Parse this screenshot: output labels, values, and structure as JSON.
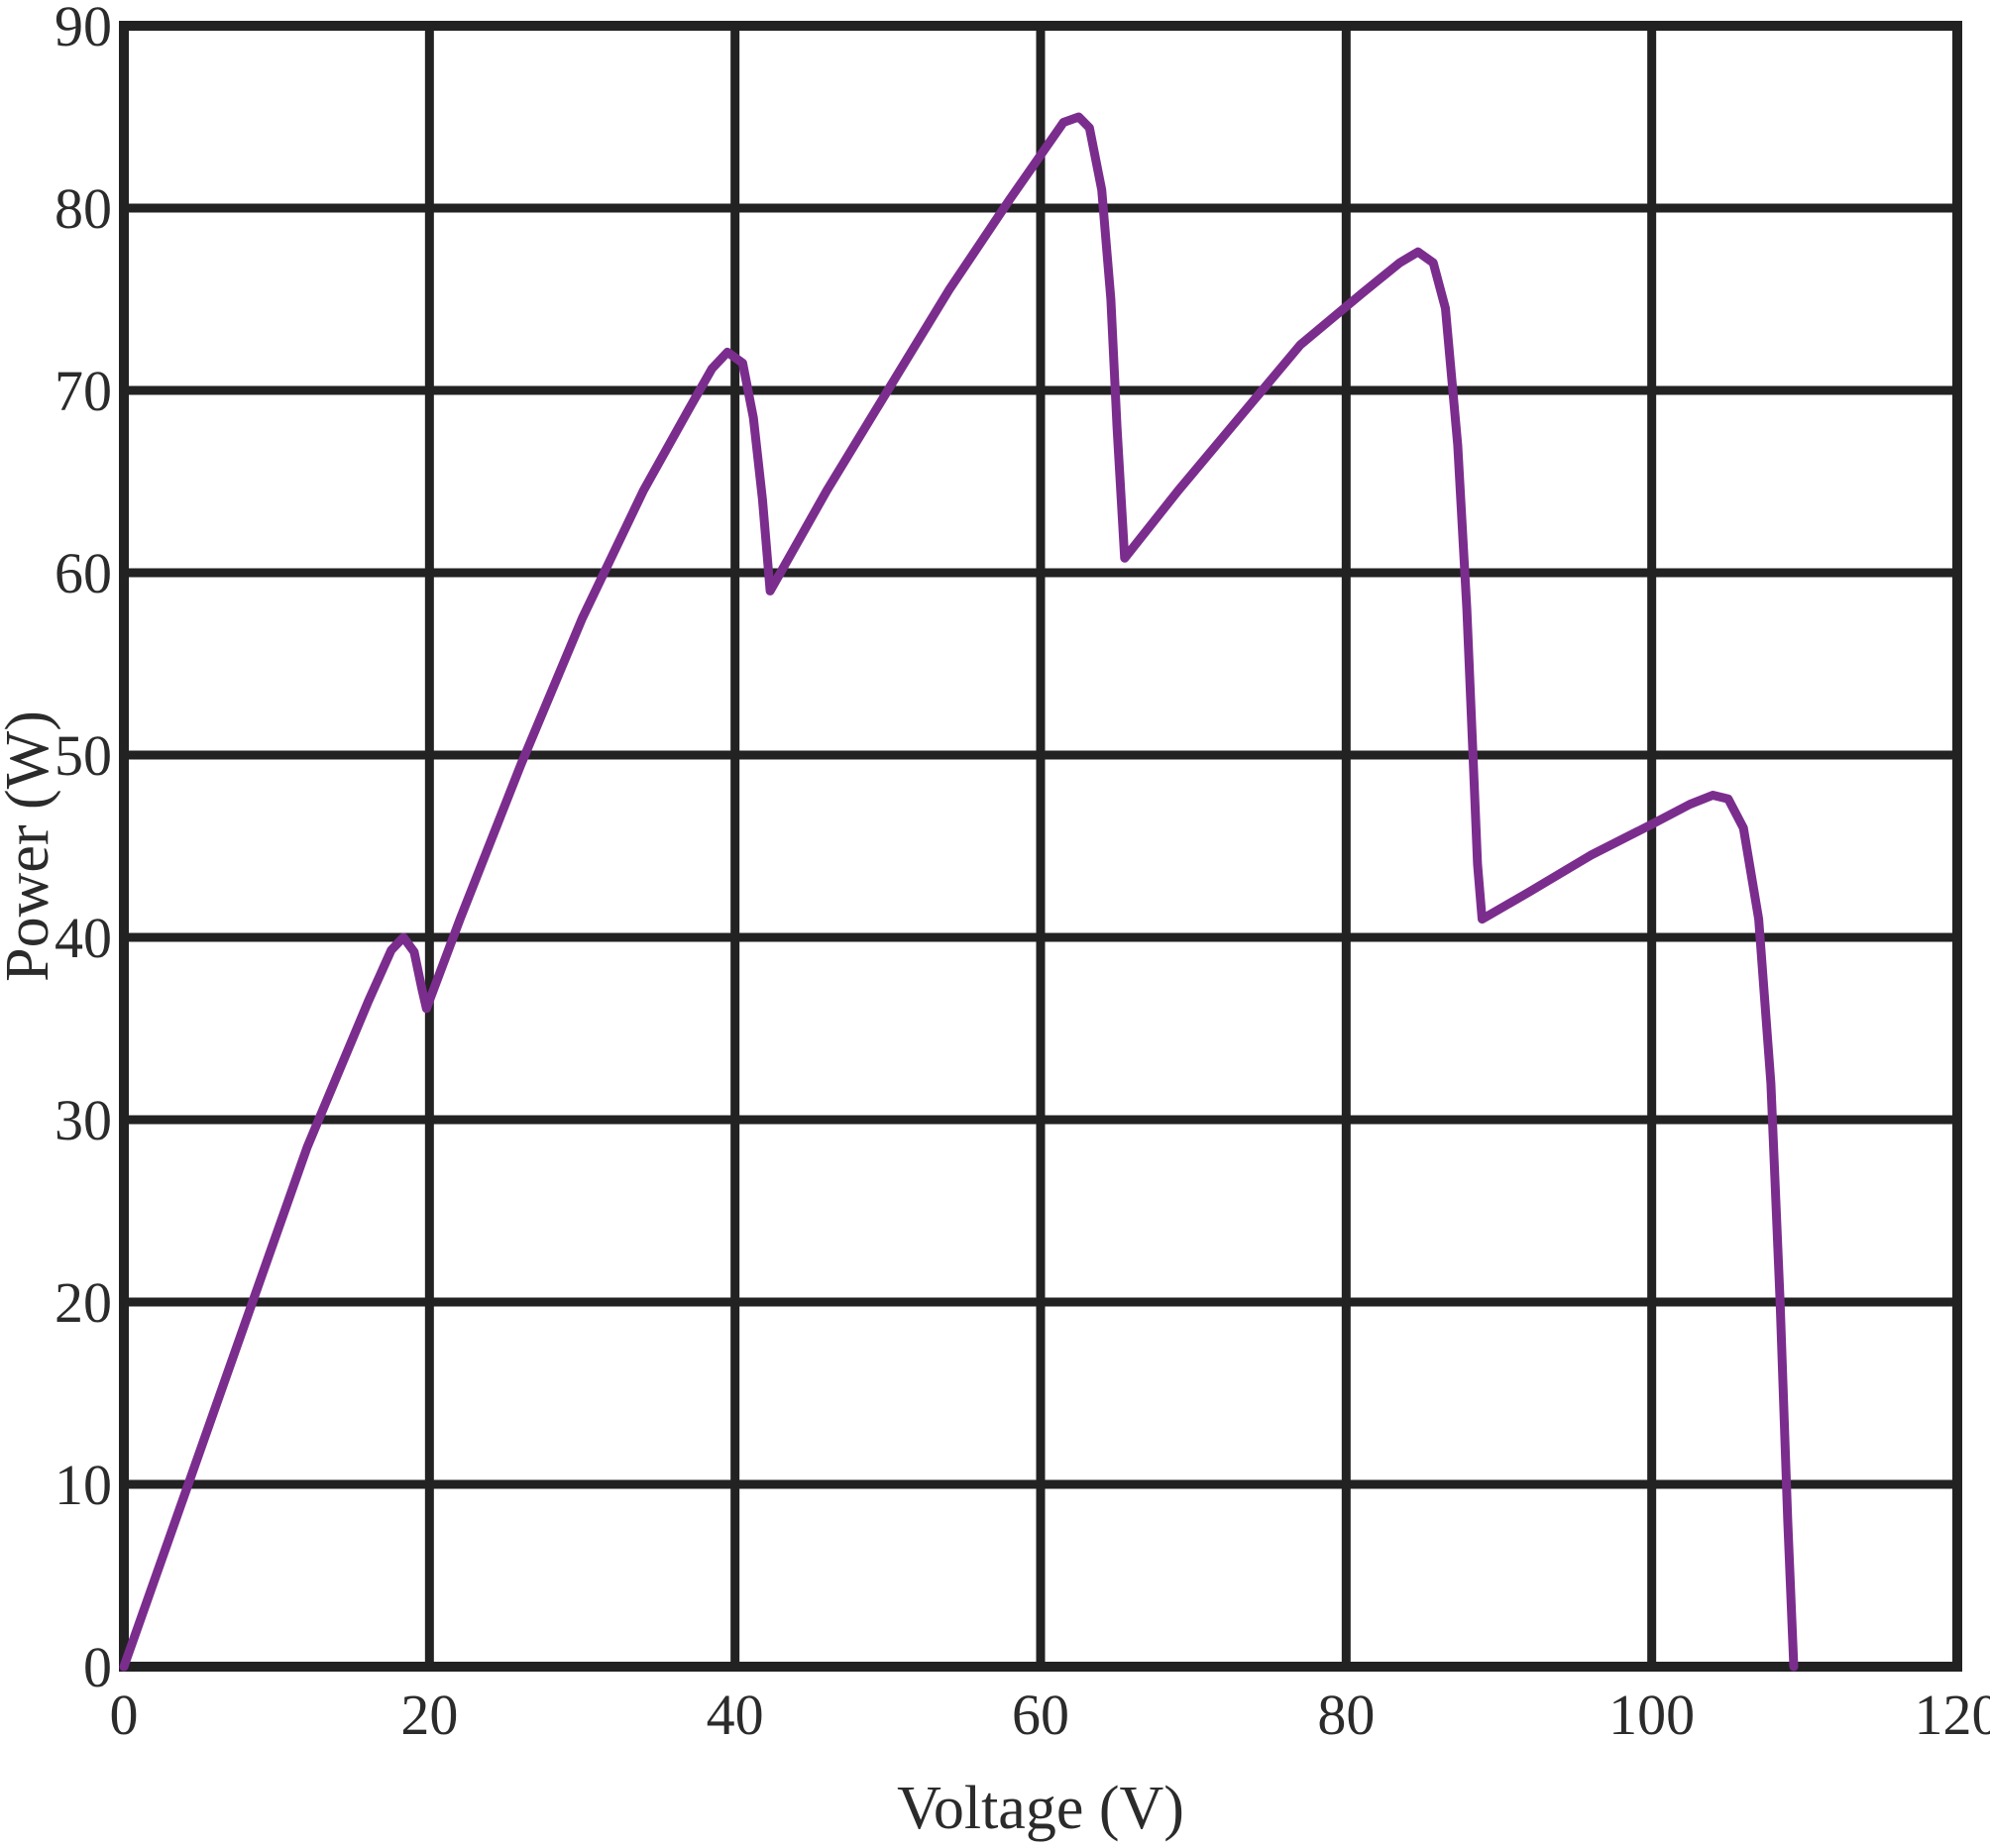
{
  "chart_data": {
    "type": "line",
    "title": "",
    "xlabel": "Voltage (V)",
    "ylabel": "Power (W)",
    "xlim": [
      0,
      120
    ],
    "ylim": [
      0,
      90
    ],
    "xticks": [
      0,
      20,
      40,
      60,
      80,
      100,
      120
    ],
    "yticks": [
      0,
      10,
      20,
      30,
      40,
      50,
      60,
      70,
      80,
      90
    ],
    "grid": true,
    "legend": "none",
    "series": [
      {
        "color": "#7B2D8E",
        "points": [
          [
            0,
            0
          ],
          [
            4,
            9.5
          ],
          [
            8,
            19
          ],
          [
            12,
            28.5
          ],
          [
            16,
            36.5
          ],
          [
            17.5,
            39.3
          ],
          [
            18.3,
            40
          ],
          [
            19,
            39.2
          ],
          [
            19.5,
            37.2
          ],
          [
            19.8,
            36.1
          ],
          [
            22,
            41
          ],
          [
            26,
            49.5
          ],
          [
            30,
            57.5
          ],
          [
            34,
            64.5
          ],
          [
            37,
            69
          ],
          [
            38.5,
            71.2
          ],
          [
            39.5,
            72.1
          ],
          [
            40.5,
            71.5
          ],
          [
            41.2,
            68.5
          ],
          [
            41.8,
            64
          ],
          [
            42.3,
            59
          ],
          [
            46,
            64.5
          ],
          [
            50,
            70
          ],
          [
            54,
            75.5
          ],
          [
            58,
            80.5
          ],
          [
            60.5,
            83.5
          ],
          [
            61.5,
            84.7
          ],
          [
            62.5,
            85
          ],
          [
            63.2,
            84.4
          ],
          [
            64,
            81
          ],
          [
            64.6,
            75
          ],
          [
            65,
            68
          ],
          [
            65.5,
            60.8
          ],
          [
            69,
            64.5
          ],
          [
            73,
            68.5
          ],
          [
            77,
            72.5
          ],
          [
            81,
            75.3
          ],
          [
            83.5,
            77
          ],
          [
            84.7,
            77.6
          ],
          [
            85.7,
            77
          ],
          [
            86.5,
            74.5
          ],
          [
            87.3,
            67
          ],
          [
            87.9,
            58
          ],
          [
            88.3,
            50
          ],
          [
            88.6,
            44
          ],
          [
            88.9,
            41
          ],
          [
            92,
            42.5
          ],
          [
            96,
            44.5
          ],
          [
            100,
            46.2
          ],
          [
            102.5,
            47.3
          ],
          [
            104,
            47.8
          ],
          [
            105,
            47.6
          ],
          [
            106,
            46
          ],
          [
            107,
            41
          ],
          [
            107.8,
            32
          ],
          [
            108.4,
            20
          ],
          [
            108.9,
            8
          ],
          [
            109.3,
            0
          ]
        ]
      }
    ]
  }
}
